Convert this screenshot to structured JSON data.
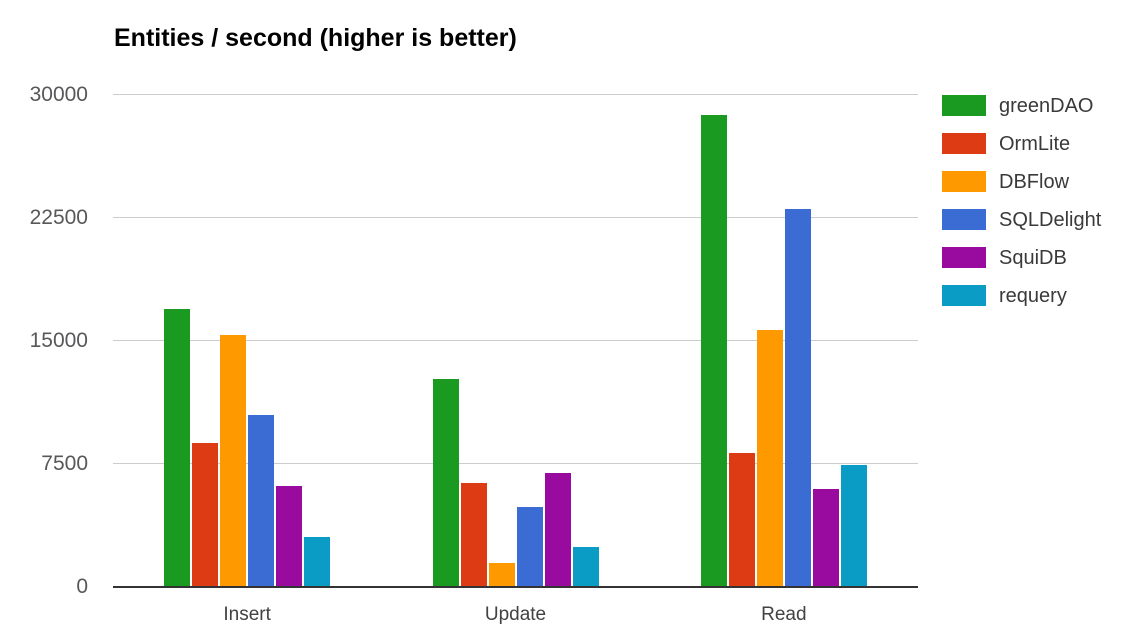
{
  "chart_data": {
    "type": "bar",
    "title": "Entities / second (higher is better)",
    "categories": [
      "Insert",
      "Update",
      "Read"
    ],
    "series": [
      {
        "name": "greenDAO",
        "color": "#1a9a21",
        "values": [
          16900,
          12600,
          28700
        ]
      },
      {
        "name": "OrmLite",
        "color": "#dc3b14",
        "values": [
          8700,
          6300,
          8100
        ]
      },
      {
        "name": "DBFlow",
        "color": "#ff9900",
        "values": [
          15300,
          1400,
          15600
        ]
      },
      {
        "name": "SQLDelight",
        "color": "#3b6cd4",
        "values": [
          10400,
          4800,
          23000
        ]
      },
      {
        "name": "SquiDB",
        "color": "#990b9e",
        "values": [
          6100,
          6900,
          5900
        ]
      },
      {
        "name": "requery",
        "color": "#0a9cc4",
        "values": [
          3000,
          2400,
          7400
        ]
      }
    ],
    "y_ticks": [
      0,
      7500,
      15000,
      22500,
      30000
    ],
    "ylim": [
      0,
      30000
    ],
    "xlabel": "",
    "ylabel": "",
    "grid": true,
    "legend_position": "right",
    "colors": {
      "gridline": "#cccccc",
      "axis_line": "#333333",
      "y_tick_label": "#58585a",
      "x_tick_label": "#424242",
      "legend_label": "#3a3a3a",
      "title": "#000000",
      "background": "#ffffff"
    }
  }
}
